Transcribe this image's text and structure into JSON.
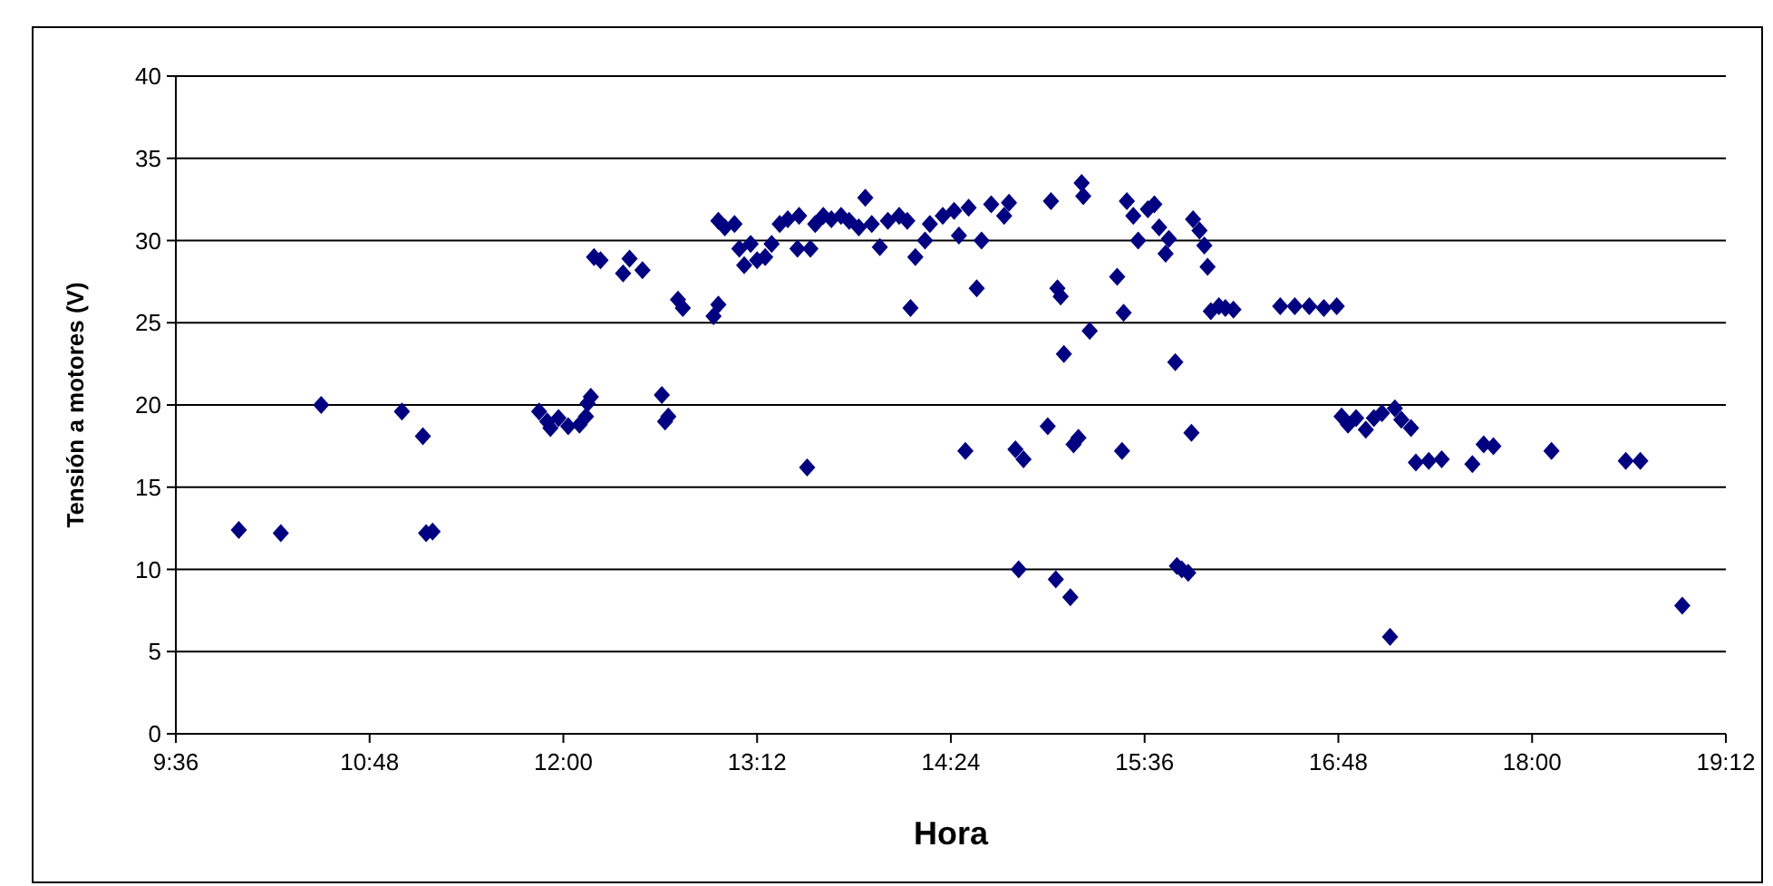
{
  "chart_data": {
    "type": "scatter",
    "xlabel": "Hora",
    "ylabel": "Tensión a motores (V)",
    "xlim": [
      9.6,
      19.2
    ],
    "xticks": [
      {
        "value": 9.6,
        "label": "9:36"
      },
      {
        "value": 10.8,
        "label": "10:48"
      },
      {
        "value": 12,
        "label": "12:00"
      },
      {
        "value": 13.2,
        "label": "13:12"
      },
      {
        "value": 14.4,
        "label": "14:24"
      },
      {
        "value": 15.6,
        "label": "15:36"
      },
      {
        "value": 16.8,
        "label": "16:48"
      },
      {
        "value": 18,
        "label": "18:00"
      },
      {
        "value": 19.2,
        "label": "19:12"
      }
    ],
    "ylim": [
      0,
      40
    ],
    "yticks": [
      0,
      5,
      10,
      15,
      20,
      25,
      30,
      35,
      40
    ],
    "grid": "y",
    "marker": "diamond",
    "series": [
      {
        "color": "#000080",
        "x": [
          9.99,
          10.25,
          10.5,
          11.0,
          11.13,
          11.15,
          11.19,
          11.85,
          11.9,
          11.92,
          11.97,
          12.03,
          12.1,
          12.14,
          12.15,
          12.17,
          12.19,
          12.23,
          12.37,
          12.41,
          12.49,
          12.61,
          12.63,
          12.65,
          12.71,
          12.74,
          12.93,
          12.96,
          12.96,
          13.0,
          13.06,
          13.09,
          13.12,
          13.16,
          13.2,
          13.25,
          13.29,
          13.34,
          13.39,
          13.45,
          13.46,
          13.51,
          13.53,
          13.56,
          13.61,
          13.66,
          13.72,
          13.77,
          13.83,
          13.87,
          13.91,
          13.96,
          14.01,
          14.08,
          14.13,
          14.15,
          14.18,
          14.24,
          14.27,
          14.35,
          14.42,
          14.45,
          14.49,
          14.51,
          14.56,
          14.59,
          14.65,
          14.73,
          14.76,
          14.8,
          14.82,
          14.85,
          15.0,
          15.02,
          15.05,
          15.06,
          15.08,
          15.1,
          15.14,
          15.16,
          15.19,
          15.21,
          15.22,
          15.26,
          15.43,
          15.46,
          15.47,
          15.49,
          15.53,
          15.56,
          15.62,
          15.66,
          15.69,
          15.73,
          15.75,
          15.79,
          15.8,
          15.83,
          15.87,
          15.89,
          15.9,
          15.94,
          15.97,
          15.99,
          16.01,
          16.06,
          16.1,
          16.15,
          16.44,
          16.53,
          16.62,
          16.71,
          16.79,
          16.82,
          16.86,
          16.91,
          16.97,
          17.02,
          17.07,
          17.12,
          17.15,
          17.19,
          17.25,
          17.28,
          17.36,
          17.44,
          17.63,
          17.7,
          17.76,
          18.12,
          18.58,
          18.67,
          18.93
        ],
        "values": [
          12.4,
          12.2,
          20.0,
          19.6,
          18.1,
          12.2,
          12.3,
          19.6,
          19.0,
          18.6,
          19.2,
          18.7,
          18.8,
          19.3,
          20.1,
          20.5,
          29.0,
          28.8,
          28.0,
          28.9,
          28.2,
          20.6,
          19.0,
          19.3,
          26.4,
          25.9,
          25.4,
          26.1,
          31.2,
          30.8,
          31.0,
          29.5,
          28.5,
          29.8,
          28.8,
          29.0,
          29.8,
          31.0,
          31.3,
          29.5,
          31.5,
          16.2,
          29.5,
          31.0,
          31.5,
          31.3,
          31.5,
          31.2,
          30.8,
          32.6,
          31.0,
          29.6,
          31.2,
          31.5,
          31.2,
          25.9,
          29.0,
          30.0,
          31.0,
          31.5,
          31.8,
          30.3,
          17.2,
          32.0,
          27.1,
          30.0,
          32.2,
          31.5,
          32.3,
          17.3,
          10.0,
          16.7,
          18.7,
          32.4,
          9.4,
          27.1,
          26.6,
          23.1,
          8.3,
          17.6,
          18.0,
          33.5,
          32.7,
          24.5,
          27.8,
          17.2,
          25.6,
          32.4,
          31.5,
          30.0,
          31.9,
          32.2,
          30.8,
          29.2,
          30.1,
          22.6,
          10.2,
          10.0,
          9.8,
          18.3,
          31.3,
          30.6,
          29.7,
          28.4,
          25.7,
          26.0,
          25.9,
          25.8,
          26.0,
          26.0,
          26.0,
          25.9,
          26.0,
          19.3,
          18.8,
          19.2,
          18.5,
          19.2,
          19.5,
          5.9,
          19.8,
          19.1,
          18.6,
          16.5,
          16.6,
          16.7,
          16.4,
          17.6,
          17.5,
          17.2,
          16.6,
          16.6,
          7.8
        ]
      }
    ]
  }
}
